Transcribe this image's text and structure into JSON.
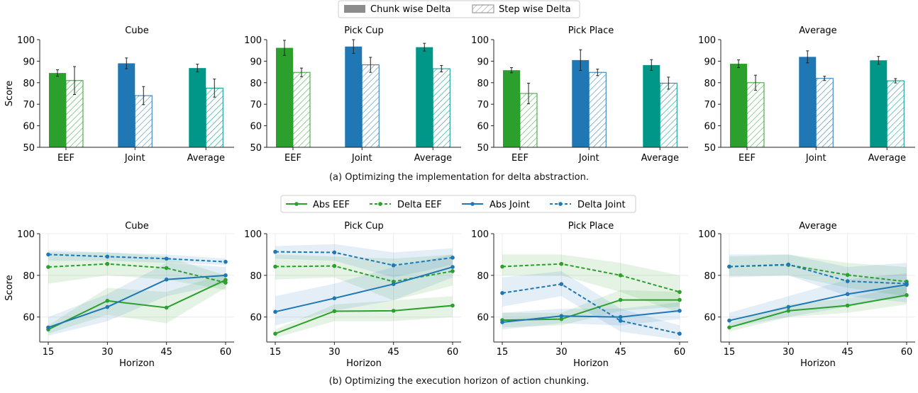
{
  "colors": {
    "eef": "#2ca02c",
    "joint": "#1f77b4",
    "average": "#009688",
    "band_eef": "#2ca02c",
    "band_joint": "#1f77b4"
  },
  "captions": {
    "a": "(a) Optimizing the implementation for delta abstraction.",
    "b": "(b) Optimizing the execution horizon of action chunking."
  },
  "legend_a": {
    "chunk": "Chunk wise Delta",
    "step": "Step wise Delta"
  },
  "legend_b": {
    "abs_eef": "Abs EEF",
    "delta_eef": "Delta EEF",
    "abs_joint": "Abs Joint",
    "delta_joint": "Delta Joint"
  },
  "chart_data": [
    {
      "type": "bar",
      "title": "Cube",
      "ylabel": "Score",
      "ylim": [
        50,
        100
      ],
      "yticks": [
        50,
        60,
        70,
        80,
        90,
        100
      ],
      "categories": [
        "EEF",
        "Joint",
        "Average"
      ],
      "series": [
        {
          "name": "Chunk wise Delta",
          "values": [
            84.5,
            89,
            86.8
          ],
          "errors": [
            1.5,
            2.5,
            1.8
          ]
        },
        {
          "name": "Step wise Delta",
          "values": [
            81,
            74,
            77.5
          ],
          "errors": [
            6.5,
            4.2,
            4.2
          ]
        }
      ]
    },
    {
      "type": "bar",
      "title": "Pick Cup",
      "ylim": [
        50,
        100
      ],
      "yticks": [
        50,
        60,
        70,
        80,
        90,
        100
      ],
      "categories": [
        "EEF",
        "Joint",
        "Average"
      ],
      "series": [
        {
          "name": "Chunk wise Delta",
          "values": [
            96.2,
            96.8,
            96.5
          ],
          "errors": [
            3.5,
            3.2,
            1.8
          ]
        },
        {
          "name": "Step wise Delta",
          "values": [
            84.8,
            88.3,
            86.5
          ],
          "errors": [
            2,
            3.5,
            1.5
          ]
        }
      ]
    },
    {
      "type": "bar",
      "title": "Pick Place",
      "ylim": [
        50,
        100
      ],
      "yticks": [
        50,
        60,
        70,
        80,
        90,
        100
      ],
      "categories": [
        "EEF",
        "Joint",
        "Average"
      ],
      "series": [
        {
          "name": "Chunk wise Delta",
          "values": [
            85.8,
            90.5,
            88.2
          ],
          "errors": [
            1.2,
            4.8,
            2.5
          ]
        },
        {
          "name": "Step wise Delta",
          "values": [
            75,
            84.8,
            79.8
          ],
          "errors": [
            4.8,
            1.5,
            2.8
          ]
        }
      ]
    },
    {
      "type": "bar",
      "title": "Average",
      "ylim": [
        50,
        100
      ],
      "yticks": [
        50,
        60,
        70,
        80,
        90,
        100
      ],
      "categories": [
        "EEF",
        "Joint",
        "Average"
      ],
      "series": [
        {
          "name": "Chunk wise Delta",
          "values": [
            88.8,
            92,
            90.4
          ],
          "errors": [
            1.8,
            2.8,
            1.8
          ]
        },
        {
          "name": "Step wise Delta",
          "values": [
            80,
            82,
            80.9
          ],
          "errors": [
            3.5,
            1,
            1
          ]
        }
      ]
    },
    {
      "type": "line",
      "title": "Cube",
      "xlabel": "Horizon",
      "ylabel": "Score",
      "x": [
        15,
        30,
        45,
        60
      ],
      "ylim": [
        48,
        100
      ],
      "yticks": [
        60,
        80,
        100
      ],
      "series": [
        {
          "name": "Abs EEF",
          "values": [
            54,
            67.8,
            64.5,
            77.8
          ],
          "band": [
            [
              52,
              56
            ],
            [
              61,
              74
            ],
            [
              57,
              72
            ],
            [
              74,
              81
            ]
          ]
        },
        {
          "name": "Delta EEF",
          "values": [
            84,
            85.5,
            83.5,
            76.5
          ],
          "band": [
            [
              76,
              91
            ],
            [
              80,
              91
            ],
            [
              78,
              89
            ],
            [
              73,
              80
            ]
          ]
        },
        {
          "name": "Abs Joint",
          "values": [
            55,
            64.8,
            78,
            80
          ],
          "band": [
            [
              51,
              60
            ],
            [
              58,
              71
            ],
            [
              70,
              86
            ],
            [
              76,
              84
            ]
          ]
        },
        {
          "name": "Delta Joint",
          "values": [
            90,
            89,
            88,
            86.5
          ],
          "band": [
            [
              87,
              92
            ],
            [
              87,
              91
            ],
            [
              86,
              90
            ],
            [
              85,
              88
            ]
          ]
        }
      ]
    },
    {
      "type": "line",
      "title": "Pick Cup",
      "xlabel": "Horizon",
      "x": [
        15,
        30,
        45,
        60
      ],
      "ylim": [
        48,
        100
      ],
      "yticks": [
        60,
        80,
        100
      ],
      "series": [
        {
          "name": "Abs EEF",
          "values": [
            52,
            62.8,
            63,
            65.5
          ],
          "band": [
            [
              50,
              54
            ],
            [
              58,
              66
            ],
            [
              58,
              68
            ],
            [
              60,
              70
            ]
          ]
        },
        {
          "name": "Delta EEF",
          "values": [
            84.2,
            84.5,
            77,
            82
          ],
          "band": [
            [
              78,
              90
            ],
            [
              79,
              89
            ],
            [
              68,
              88
            ],
            [
              75,
              90
            ]
          ]
        },
        {
          "name": "Abs Joint",
          "values": [
            62.5,
            69,
            75.8,
            84
          ],
          "band": [
            [
              56,
              70
            ],
            [
              63,
              76
            ],
            [
              68,
              84
            ],
            [
              79,
              90
            ]
          ]
        },
        {
          "name": "Delta Joint",
          "values": [
            91.3,
            91,
            84.8,
            88.5
          ],
          "band": [
            [
              88,
              94
            ],
            [
              87,
              95
            ],
            [
              79,
              91
            ],
            [
              85,
              93
            ]
          ]
        }
      ]
    },
    {
      "type": "line",
      "title": "Pick Place",
      "xlabel": "Horizon",
      "x": [
        15,
        30,
        45,
        60
      ],
      "ylim": [
        48,
        100
      ],
      "yticks": [
        60,
        80,
        100
      ],
      "series": [
        {
          "name": "Abs EEF",
          "values": [
            58.5,
            59,
            68.2,
            68.2
          ],
          "band": [
            [
              55,
              62
            ],
            [
              56,
              62
            ],
            [
              63,
              73
            ],
            [
              65,
              72
            ]
          ]
        },
        {
          "name": "Delta EEF",
          "values": [
            84.2,
            85.5,
            80,
            72
          ],
          "band": [
            [
              80,
              90
            ],
            [
              80,
              90
            ],
            [
              72,
              86
            ],
            [
              62,
              80
            ]
          ]
        },
        {
          "name": "Abs Joint",
          "values": [
            57.5,
            60.5,
            60,
            63
          ],
          "band": [
            [
              54,
              62
            ],
            [
              57,
              64
            ],
            [
              56,
              64
            ],
            [
              59,
              67
            ]
          ]
        },
        {
          "name": "Delta Joint",
          "values": [
            71.5,
            75.8,
            58.2,
            52
          ],
          "band": [
            [
              65,
              79
            ],
            [
              70,
              82
            ],
            [
              53,
              64
            ],
            [
              49,
              56
            ]
          ]
        }
      ]
    },
    {
      "type": "line",
      "title": "Average",
      "xlabel": "Horizon",
      "x": [
        15,
        30,
        45,
        60
      ],
      "ylim": [
        48,
        100
      ],
      "yticks": [
        60,
        80,
        100
      ],
      "series": [
        {
          "name": "Abs EEF",
          "values": [
            55,
            63,
            65.5,
            70.5
          ],
          "band": [
            [
              53,
              57
            ],
            [
              60,
              66
            ],
            [
              62,
              69
            ],
            [
              66,
              75
            ]
          ]
        },
        {
          "name": "Delta EEF",
          "values": [
            84.2,
            85,
            80.2,
            77
          ],
          "band": [
            [
              80,
              89
            ],
            [
              80,
              90
            ],
            [
              74,
              86
            ],
            [
              70,
              84
            ]
          ]
        },
        {
          "name": "Abs Joint",
          "values": [
            58.3,
            64.8,
            71,
            75.5
          ],
          "band": [
            [
              55,
              62
            ],
            [
              60,
              70
            ],
            [
              65,
              78
            ],
            [
              70,
              81
            ]
          ]
        },
        {
          "name": "Delta Joint",
          "values": [
            84.2,
            85.2,
            77.2,
            76
          ],
          "band": [
            [
              79,
              90
            ],
            [
              80,
              90
            ],
            [
              70,
              84
            ],
            [
              67,
              86
            ]
          ]
        }
      ]
    }
  ]
}
